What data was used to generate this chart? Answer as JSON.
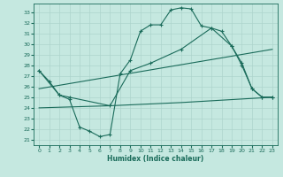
{
  "xlabel": "Humidex (Indice chaleur)",
  "bg_color": "#c5e8e0",
  "line_color": "#1a6b5a",
  "grid_color": "#aed4cc",
  "xlim": [
    -0.5,
    23.5
  ],
  "ylim": [
    20.5,
    33.8
  ],
  "yticks": [
    21,
    22,
    23,
    24,
    25,
    26,
    27,
    28,
    29,
    30,
    31,
    32,
    33
  ],
  "xticks": [
    0,
    1,
    2,
    3,
    4,
    5,
    6,
    7,
    8,
    9,
    10,
    11,
    12,
    13,
    14,
    15,
    16,
    17,
    18,
    19,
    20,
    21,
    22,
    23
  ],
  "curve1_x": [
    0,
    1,
    2,
    3,
    4,
    5,
    6,
    7,
    8,
    9,
    10,
    11,
    12,
    13,
    14,
    15,
    16,
    17,
    18,
    19,
    20,
    21,
    22,
    23
  ],
  "curve1_y": [
    27.5,
    26.5,
    25.2,
    24.8,
    22.2,
    21.8,
    21.3,
    21.5,
    27.2,
    28.5,
    31.2,
    31.8,
    31.8,
    33.2,
    33.4,
    33.3,
    31.7,
    31.5,
    31.2,
    29.8,
    28.0,
    25.8,
    25.0,
    25.0
  ],
  "curve2_x": [
    0,
    2,
    3,
    7,
    9,
    11,
    14,
    17,
    19,
    20,
    21,
    22,
    23
  ],
  "curve2_y": [
    27.5,
    25.2,
    25.0,
    24.2,
    27.5,
    28.2,
    29.5,
    31.5,
    29.8,
    28.2,
    25.8,
    25.0,
    25.0
  ],
  "curve3_x": [
    0,
    7,
    14,
    23
  ],
  "curve3_y": [
    24.0,
    24.2,
    24.5,
    25.0
  ],
  "curve4_x": [
    0,
    23
  ],
  "curve4_y": [
    25.8,
    29.5
  ]
}
